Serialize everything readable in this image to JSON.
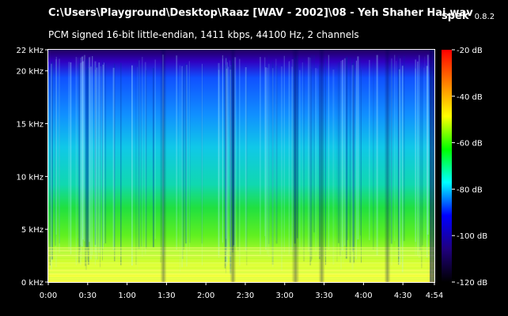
{
  "header": {
    "file_path": "C:\\Users\\Playground\\Desktop\\Raaz [WAV - 2002]\\08 - Yeh Shaher Hai.wav",
    "audio_info": "PCM signed 16-bit little-endian, 1411 kbps, 44100 Hz, 2 channels"
  },
  "brand": {
    "name": "spek",
    "version": "0.8.2"
  },
  "frequency_axis": {
    "labels": [
      "0 kHz",
      "5 kHz",
      "10 kHz",
      "15 kHz",
      "20 kHz",
      "22 kHz"
    ],
    "values_khz": [
      0,
      5,
      10,
      15,
      20,
      22
    ],
    "max_khz": 22
  },
  "time_axis": {
    "labels": [
      "0:00",
      "0:30",
      "1:00",
      "1:30",
      "2:00",
      "2:30",
      "3:00",
      "3:30",
      "4:00",
      "4:30",
      "4:54"
    ],
    "values_s": [
      0,
      30,
      60,
      90,
      120,
      150,
      180,
      210,
      240,
      270,
      294
    ],
    "duration_s": 294
  },
  "level_scale": {
    "labels": [
      "-20 dB",
      "-40 dB",
      "-60 dB",
      "-80 dB",
      "-100 dB",
      "-120 dB"
    ],
    "values_db": [
      -20,
      -40,
      -60,
      -80,
      -100,
      -120
    ],
    "min_db": -120,
    "max_db": -20,
    "colors": [
      "#ff0000",
      "#ff7f00",
      "#ffff00",
      "#00ff00",
      "#00ffff",
      "#0000ff",
      "#20007f",
      "#000000"
    ]
  },
  "colors": {
    "background": "#000000",
    "text": "#ffffff"
  }
}
